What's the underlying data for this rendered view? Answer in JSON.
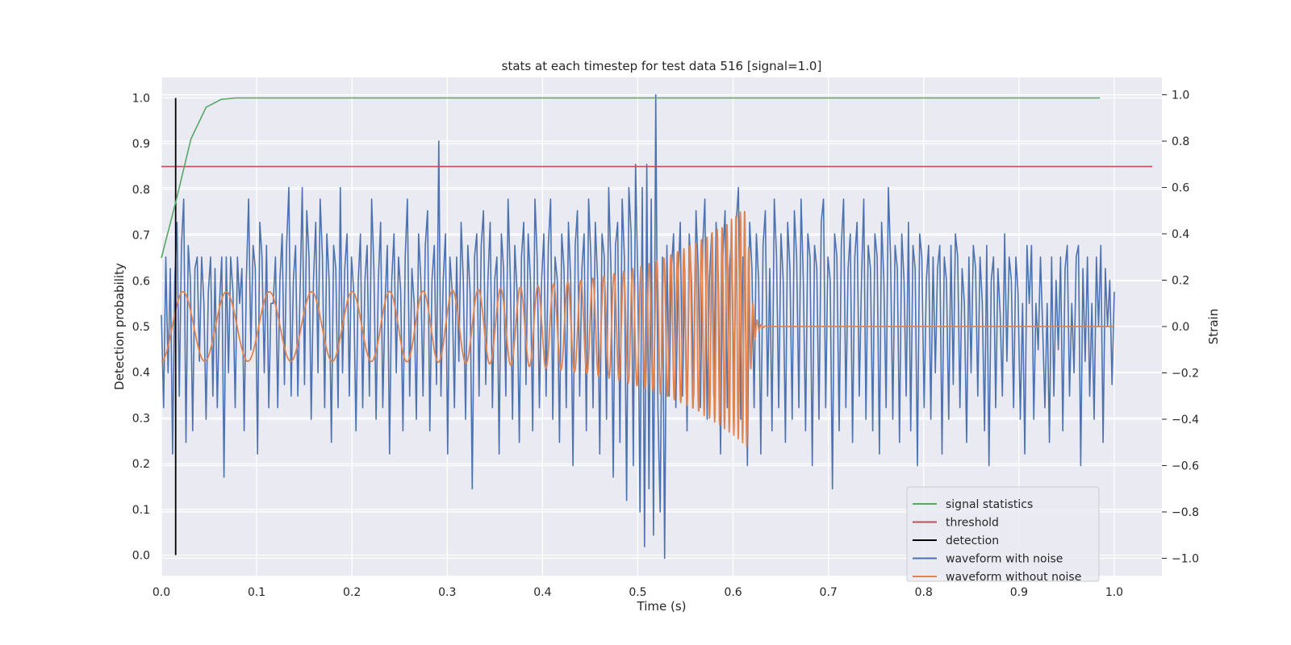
{
  "chart_data": {
    "type": "line",
    "title": "stats at each timestep for test data 516 [signal=1.0]",
    "xlabel": "Time (s)",
    "ylabel_left": "Detection probability",
    "ylabel_right": "Strain",
    "xlim": [
      0.0,
      1.05
    ],
    "ylim_left": [
      -0.045,
      1.045
    ],
    "ylim_right": [
      -1.075,
      1.075
    ],
    "x_ticks": [
      "0.0",
      "0.1",
      "0.2",
      "0.3",
      "0.4",
      "0.5",
      "0.6",
      "0.7",
      "0.8",
      "0.9",
      "1.0"
    ],
    "x_tick_values": [
      0.0,
      0.1,
      0.2,
      0.3,
      0.4,
      0.5,
      0.6,
      0.7,
      0.8,
      0.9,
      1.0
    ],
    "y_left_ticks": [
      "0.0",
      "0.1",
      "0.2",
      "0.3",
      "0.4",
      "0.5",
      "0.6",
      "0.7",
      "0.8",
      "0.9",
      "1.0"
    ],
    "y_left_tick_values": [
      0.0,
      0.1,
      0.2,
      0.3,
      0.4,
      0.5,
      0.6,
      0.7,
      0.8,
      0.9,
      1.0
    ],
    "y_right_ticks": [
      "−1.0",
      "−0.8",
      "−0.6",
      "−0.4",
      "−0.2",
      "0.0",
      "0.2",
      "0.4",
      "0.6",
      "0.8",
      "1.0"
    ],
    "y_right_tick_values": [
      -1.0,
      -0.8,
      -0.6,
      -0.4,
      -0.2,
      0.0,
      0.2,
      0.4,
      0.6,
      0.8,
      1.0
    ],
    "grid": true,
    "legend_position": "lower-right",
    "series": [
      {
        "name": "signal statistics",
        "color": "#55a868",
        "axis": "left",
        "x": [
          0.0,
          0.016,
          0.031,
          0.047,
          0.063,
          0.078,
          0.1,
          0.2,
          0.4,
          0.6,
          0.8,
          0.985
        ],
        "y": [
          0.65,
          0.78,
          0.91,
          0.98,
          0.997,
          1.0,
          1.0,
          1.0,
          1.0,
          1.0,
          1.0,
          1.0
        ]
      },
      {
        "name": "threshold",
        "color": "#c44e52",
        "axis": "left",
        "x": [
          0.0,
          1.04
        ],
        "y": [
          0.85,
          0.85
        ]
      },
      {
        "name": "detection",
        "color": "#000000",
        "axis": "left",
        "x": [
          0.015,
          0.015
        ],
        "y": [
          0.0,
          1.0
        ]
      },
      {
        "name": "waveform with noise",
        "color": "#4c72b0",
        "axis": "right",
        "x_start": 0.0,
        "x_end": 1.0,
        "y": [
          0.05,
          -0.35,
          0.3,
          -0.2,
          0.25,
          -0.55,
          0.2,
          0.45,
          -0.3,
          0.35,
          0.55,
          -0.5,
          0.35,
          0.2,
          -0.45,
          0.25,
          0.3,
          -0.15,
          0.3,
          0.1,
          -0.4,
          0.15,
          0.3,
          -0.3,
          0.25,
          -0.35,
          0.1,
          0.3,
          -0.65,
          0.3,
          -0.2,
          0.3,
          0.15,
          -0.35,
          0.3,
          0.1,
          0.25,
          -0.45,
          0.2,
          0.55,
          -0.1,
          0.35,
          0.25,
          -0.55,
          0.45,
          0.3,
          -0.2,
          0.35,
          -0.35,
          0.1,
          0.1,
          0.3,
          -0.35,
          0.2,
          0.4,
          -0.25,
          0.35,
          0.6,
          -0.3,
          0.2,
          0.35,
          -0.3,
          0.15,
          0.6,
          -0.25,
          0.5,
          0.3,
          -0.4,
          0.2,
          0.45,
          -0.2,
          0.55,
          0.3,
          -0.35,
          0.4,
          0.2,
          -0.5,
          0.35,
          0.25,
          -0.35,
          0.6,
          -0.2,
          0.25,
          0.4,
          -0.3,
          0.3,
          0.15,
          -0.45,
          0.2,
          0.4,
          -0.35,
          0.2,
          0.35,
          -0.3,
          0.55,
          0.25,
          -0.4,
          0.2,
          0.45,
          -0.35,
          0.1,
          0.35,
          -0.55,
          0.2,
          0.4,
          -0.2,
          0.3,
          0.15,
          -0.45,
          0.3,
          0.55,
          -0.3,
          0.25,
          0.1,
          -0.4,
          0.4,
          0.2,
          -0.3,
          0.35,
          0.5,
          -0.45,
          0.2,
          0.35,
          -0.25,
          0.8,
          -0.3,
          0.2,
          0.4,
          -0.55,
          0.3,
          0.15,
          -0.35,
          0.3,
          -0.15,
          0.45,
          0.2,
          -0.4,
          0.35,
          0.15,
          -0.7,
          0.3,
          0.4,
          -0.3,
          0.35,
          0.5,
          -0.25,
          0.2,
          0.45,
          -0.35,
          0.2,
          0.3,
          -0.55,
          0.4,
          0.25,
          -0.3,
          0.55,
          0.2,
          -0.4,
          0.35,
          0.15,
          -0.5,
          0.3,
          0.45,
          -0.25,
          0.4,
          0.2,
          -0.45,
          0.55,
          0.3,
          -0.35,
          0.2,
          0.4,
          -0.3,
          0.35,
          0.55,
          -0.4,
          0.3,
          0.2,
          -0.5,
          0.4,
          0.25,
          -0.35,
          0.45,
          0.2,
          -0.6,
          0.35,
          0.5,
          -0.3,
          0.25,
          0.4,
          -0.45,
          0.55,
          0.3,
          -0.35,
          0.45,
          0.2,
          -0.55,
          0.4,
          0.3,
          -0.4,
          0.6,
          0.25,
          -0.65,
          0.35,
          0.45,
          -0.5,
          0.55,
          0.3,
          -0.75,
          0.6,
          0.4,
          -0.6,
          0.7,
          0.2,
          -0.8,
          0.6,
          -0.95,
          0.7,
          -0.7,
          0.55,
          -0.9,
          1.0,
          -0.35,
          -0.8,
          0.3,
          -1.0,
          0.35,
          -0.3,
          0.25,
          0.4,
          -0.35,
          0.2,
          0.45,
          -0.3,
          0.25,
          -0.45,
          0.4,
          0.2,
          -0.3,
          0.5,
          0.25,
          -0.35,
          0.35,
          0.55,
          -0.4,
          0.2,
          0.4,
          -0.3,
          0.45,
          0.2,
          -0.55,
          0.3,
          0.5,
          -0.35,
          0.25,
          0.4,
          -0.3,
          0.45,
          0.6,
          -0.4,
          0.3,
          0.15,
          -0.6,
          0.45,
          0.25,
          -0.35,
          0.4,
          0.2,
          -0.55,
          0.35,
          0.5,
          -0.3,
          0.25,
          -0.45,
          0.55,
          0.3,
          -0.35,
          0.4,
          0.2,
          -0.5,
          0.45,
          0.25,
          -0.4,
          0.5,
          0.3,
          -0.35,
          0.55,
          0.2,
          -0.45,
          0.4,
          0.3,
          -0.6,
          0.35,
          0.25,
          -0.4,
          0.45,
          0.55,
          -0.35,
          0.3,
          0.2,
          -0.7,
          0.4,
          0.3,
          -0.45,
          0.35,
          0.55,
          -0.35,
          0.25,
          0.4,
          -0.5,
          0.3,
          0.45,
          -0.3,
          0.2,
          0.55,
          -0.4,
          0.35,
          0.25,
          -0.45,
          0.4,
          0.3,
          -0.55,
          0.45,
          0.2,
          -0.35,
          0.6,
          0.3,
          -0.4,
          0.35,
          0.25,
          -0.5,
          0.4,
          0.2,
          -0.3,
          0.45,
          -0.45,
          0.35,
          0.25,
          -0.6,
          0.4,
          0.3,
          -0.35,
          0.2,
          0.35,
          -0.4,
          0.3,
          -0.2,
          0.25,
          0.35,
          -0.55,
          0.3,
          0.2,
          -0.4,
          0.35,
          -0.25,
          0.4,
          0.3,
          -0.35,
          0.25,
          0.1,
          -0.5,
          0.3,
          -0.2,
          0.35,
          0.25,
          -0.3,
          0.3,
          0.1,
          -0.45,
          0.35,
          -0.6,
          0.2,
          0.3,
          -0.35,
          0.25,
          0.05,
          -0.3,
          0.4,
          -0.15,
          0.3,
          0.2,
          -0.35,
          0.3,
          0.15,
          -0.4,
          0.1,
          -0.55,
          0.35,
          0.1,
          0.35,
          -0.4,
          0.1,
          -0.1,
          0.3,
          0.0,
          -0.35,
          0.1,
          -0.5,
          0.3,
          -0.3,
          0.2,
          -0.1,
          0.3,
          -0.45,
          0.25,
          0.35,
          -0.3,
          0.1,
          -0.2,
          0.3,
          0.35,
          -0.6,
          0.25,
          -0.15,
          0.3,
          -0.3,
          0.1,
          -0.4,
          0.3,
          0.0,
          0.35,
          -0.5,
          0.25,
          0.0,
          0.2,
          -0.25,
          0.15
        ]
      },
      {
        "name": "waveform without noise",
        "color": "#dd8452",
        "axis": "right",
        "chirp": {
          "t_start": 0.0,
          "t_merger": 0.615,
          "t_end": 1.0,
          "f_start": 22,
          "f_merger": 230,
          "amp_start": 0.15,
          "amp_merger": 0.52
        }
      }
    ]
  }
}
